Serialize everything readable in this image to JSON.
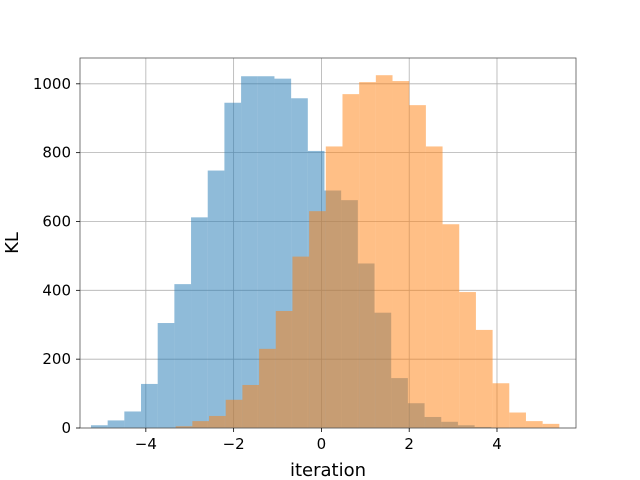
{
  "chart_data": {
    "type": "bar",
    "xlabel": "iteration",
    "ylabel": "KL",
    "xlim": [
      -5.5,
      5.8
    ],
    "ylim": [
      0,
      1075
    ],
    "xticks": [
      -4,
      -2,
      0,
      2,
      4
    ],
    "xtick_labels": [
      "−4",
      "−2",
      "0",
      "2",
      "4"
    ],
    "yticks": [
      0,
      200,
      400,
      600,
      800,
      1000
    ],
    "ytick_labels": [
      "0",
      "200",
      "400",
      "600",
      "800",
      "1000"
    ],
    "grid": true,
    "series": [
      {
        "color": "#1f77b4",
        "opacity": 0.5,
        "bin_edges": [
          -5.25,
          -4.87,
          -4.49,
          -4.11,
          -3.73,
          -3.35,
          -2.97,
          -2.59,
          -2.21,
          -1.83,
          -1.45,
          -1.07,
          -0.69,
          -0.31,
          0.07,
          0.45,
          0.83,
          1.21,
          1.59,
          1.97,
          2.35,
          2.73,
          3.11,
          3.49,
          3.87
        ],
        "values": [
          8,
          22,
          48,
          128,
          305,
          418,
          612,
          748,
          945,
          1022,
          1022,
          1015,
          958,
          805,
          690,
          662,
          478,
          335,
          145,
          72,
          32,
          18,
          8,
          3
        ]
      },
      {
        "color": "#ff7f0e",
        "opacity": 0.5,
        "bin_edges": [
          -3.32,
          -2.94,
          -2.56,
          -2.18,
          -1.8,
          -1.42,
          -1.04,
          -0.66,
          -0.28,
          0.1,
          0.48,
          0.86,
          1.24,
          1.62,
          2.0,
          2.38,
          2.76,
          3.14,
          3.52,
          3.9,
          4.28,
          4.66,
          5.04,
          5.42
        ],
        "values": [
          5,
          20,
          35,
          82,
          125,
          230,
          340,
          498,
          630,
          818,
          970,
          1005,
          1025,
          1008,
          938,
          818,
          592,
          395,
          285,
          130,
          45,
          20,
          12
        ]
      }
    ]
  }
}
